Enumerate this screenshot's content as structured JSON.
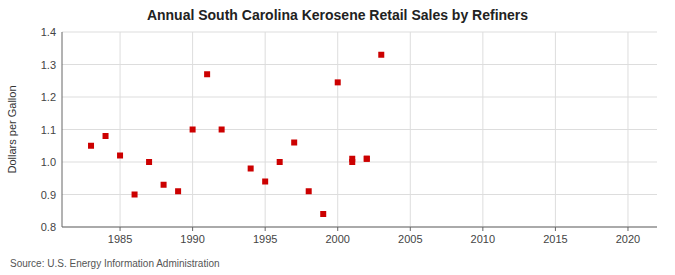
{
  "chart_data": {
    "type": "scatter",
    "title": "Annual South Carolina Kerosene Retail Sales by Refiners",
    "ylabel": "Dollars per Gallon",
    "annotations": [
      "Source: U.S. Energy Information Administration"
    ],
    "color": "#cc0000",
    "marker": "square",
    "grid": true,
    "xlim": [
      1981,
      2022
    ],
    "ylim": [
      0.8,
      1.4
    ],
    "xticks": [
      1985,
      1990,
      1995,
      2000,
      2005,
      2010,
      2015,
      2020
    ],
    "yticks": [
      0.8,
      0.9,
      {
        "value": 1.0,
        "label": "1.0"
      },
      1.1,
      1.2,
      1.3,
      1.4
    ],
    "x": [
      1983,
      1984,
      1985,
      1986,
      1987,
      1988,
      1989,
      1990,
      1991,
      1992,
      1994,
      1995,
      1996,
      1997,
      1998,
      1999,
      2000,
      2001,
      2002,
      2003,
      2001,
      2002
    ],
    "values": [
      1.05,
      1.08,
      1.02,
      0.9,
      1.0,
      0.93,
      0.91,
      1.1,
      1.27,
      1.1,
      0.98,
      0.94,
      1.0,
      1.06,
      0.91,
      0.84,
      1.245,
      1.01,
      1.01,
      1.33,
      1.0,
      1.01
    ]
  }
}
